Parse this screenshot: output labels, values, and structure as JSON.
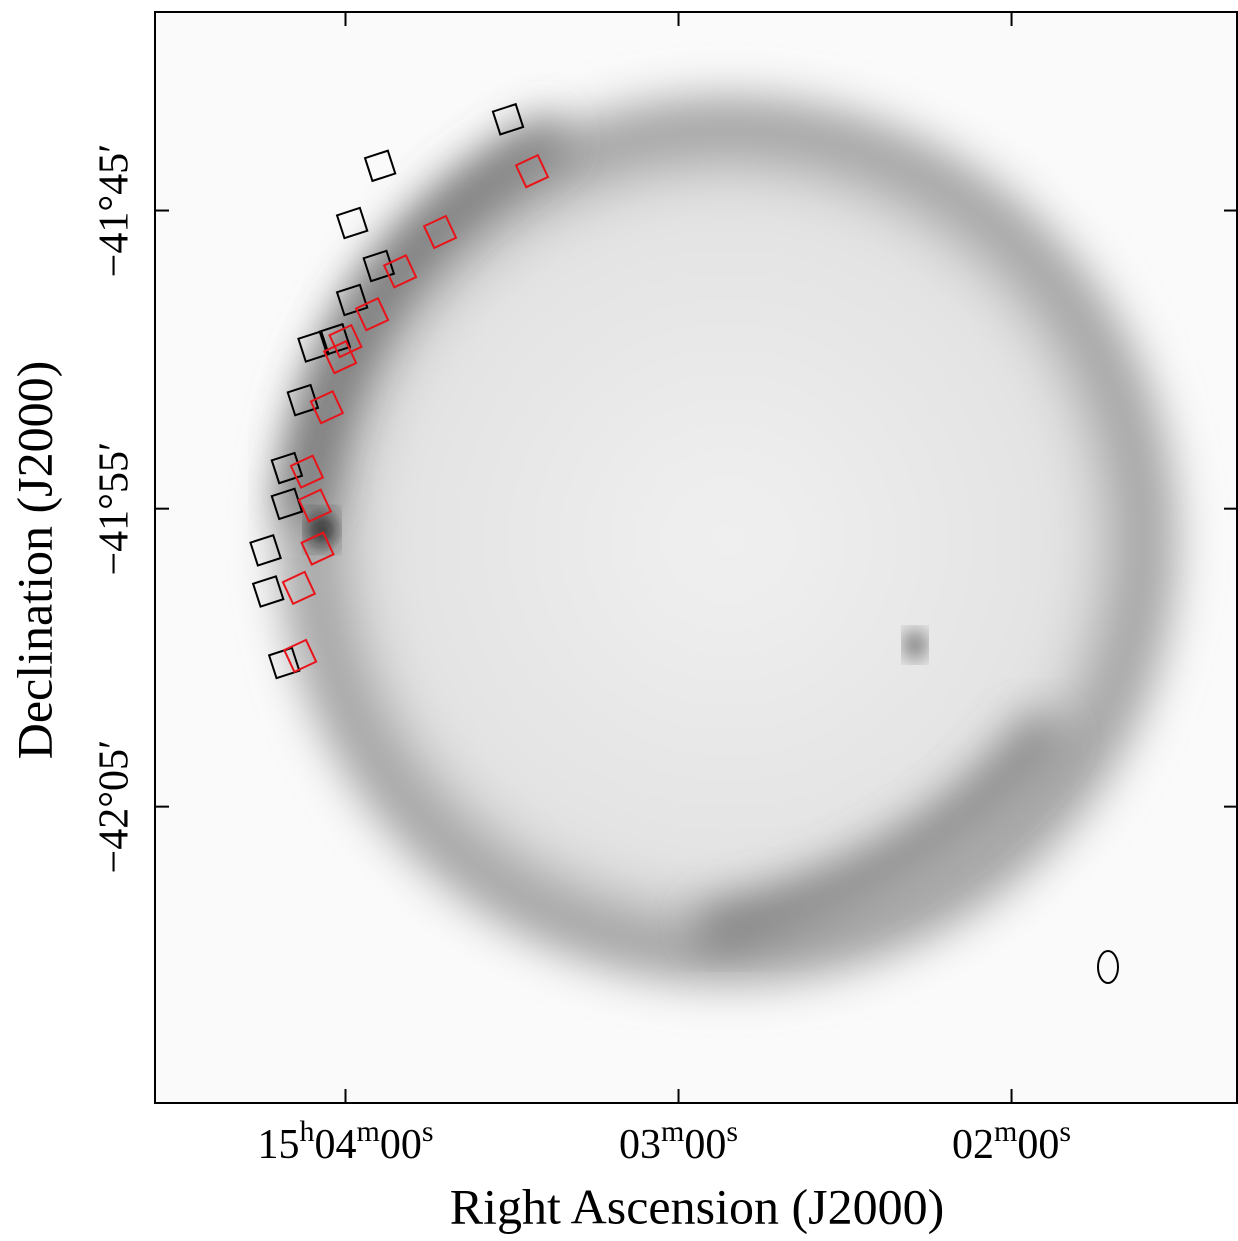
{
  "chart_data": {
    "type": "scatter",
    "x_label": "Right Ascension (J2000)",
    "y_label": "Declination (J2000)",
    "xlim": [
      226.143,
      225.33
    ],
    "ylim": [
      -42.249,
      -41.639
    ],
    "xticks": [
      {
        "value": 226.0,
        "label": "15h04m00s"
      },
      {
        "value": 225.75,
        "label": "03m00s"
      },
      {
        "value": 225.5,
        "label": "02m00s"
      }
    ],
    "yticks": [
      {
        "value": -41.75,
        "label": "−41°45′"
      },
      {
        "value": -41.9167,
        "label": "−41°55′"
      },
      {
        "value": -42.0833,
        "label": "−42°05′"
      }
    ],
    "series": [
      {
        "color": "#000000",
        "x": [
          225.878,
          225.974,
          225.995,
          225.975,
          225.995,
          226.024,
          226.008,
          226.032,
          226.044,
          226.044,
          226.06,
          226.058,
          226.046
        ],
        "y": [
          -41.699,
          -41.725,
          -41.757,
          -41.781,
          -41.8,
          -41.826,
          -41.822,
          -41.856,
          -41.894,
          -41.914,
          -41.94,
          -41.963,
          -42.003
        ]
      },
      {
        "color": "#e8141a",
        "x": [
          225.86,
          225.929,
          225.959,
          225.98,
          226.0,
          226.004,
          226.014,
          226.029,
          226.023,
          226.021,
          226.035,
          226.034
        ],
        "y": [
          -41.728,
          -41.762,
          -41.784,
          -41.808,
          -41.823,
          -41.832,
          -41.86,
          -41.896,
          -41.915,
          -41.939,
          -41.961,
          -41.999
        ]
      }
    ]
  }
}
